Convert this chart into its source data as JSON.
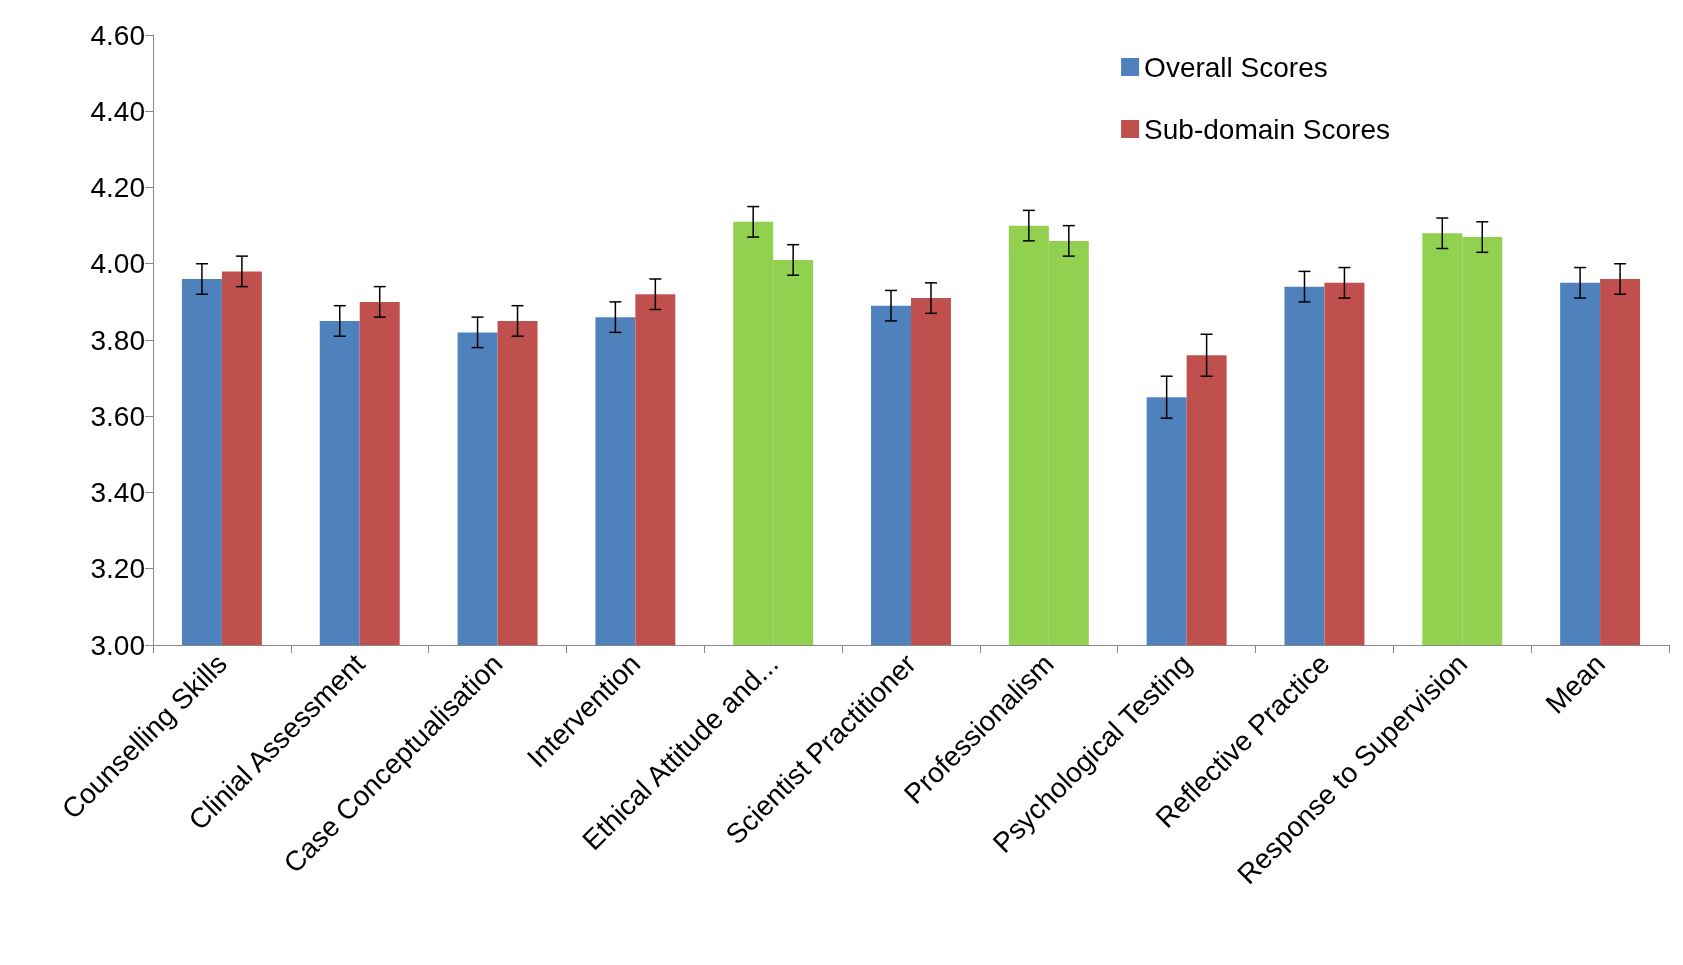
{
  "chart_data": {
    "type": "bar",
    "categories": [
      "Counselling Skills",
      "Clinial Assessment",
      "Case Conceptualisation",
      "Intervention",
      "Ethical Attitude and...",
      "Scientist Practitioner",
      "Professionalism",
      "Psychological Testing",
      "Reflective Practice",
      "Response to Supervision",
      "Mean"
    ],
    "series": [
      {
        "name": "Overall Scores",
        "color": "#4f81bd",
        "colors": [
          "#4f81bd",
          "#4f81bd",
          "#4f81bd",
          "#4f81bd",
          "#92d050",
          "#4f81bd",
          "#92d050",
          "#4f81bd",
          "#4f81bd",
          "#92d050",
          "#4f81bd"
        ],
        "values": [
          3.96,
          3.85,
          3.82,
          3.86,
          4.11,
          3.89,
          4.1,
          3.65,
          3.94,
          4.08,
          3.95
        ],
        "errors": [
          0.04,
          0.04,
          0.04,
          0.04,
          0.04,
          0.04,
          0.04,
          0.055,
          0.04,
          0.04,
          0.04
        ]
      },
      {
        "name": "Sub-domain Scores",
        "color": "#c0504d",
        "colors": [
          "#c0504d",
          "#c0504d",
          "#c0504d",
          "#c0504d",
          "#92d050",
          "#c0504d",
          "#92d050",
          "#c0504d",
          "#c0504d",
          "#92d050",
          "#c0504d"
        ],
        "values": [
          3.98,
          3.9,
          3.85,
          3.92,
          4.01,
          3.91,
          4.06,
          3.76,
          3.95,
          4.07,
          3.96
        ],
        "errors": [
          0.04,
          0.04,
          0.04,
          0.04,
          0.04,
          0.04,
          0.04,
          0.055,
          0.04,
          0.04,
          0.04
        ]
      }
    ],
    "ylim": [
      3,
      4.6
    ],
    "yticks": [
      {
        "value": 3,
        "label": "3.00"
      },
      {
        "value": 3.2,
        "label": "3.20"
      },
      {
        "value": 3.4,
        "label": "3.40"
      },
      {
        "value": 3.6,
        "label": "3.60"
      },
      {
        "value": 3.8,
        "label": "3.80"
      },
      {
        "value": 4,
        "label": "4.00"
      },
      {
        "value": 4.2,
        "label": "4.20"
      },
      {
        "value": 4.4,
        "label": "4.40"
      },
      {
        "value": 4.6,
        "label": "4.60"
      }
    ],
    "grid": false,
    "legend": "top right"
  }
}
